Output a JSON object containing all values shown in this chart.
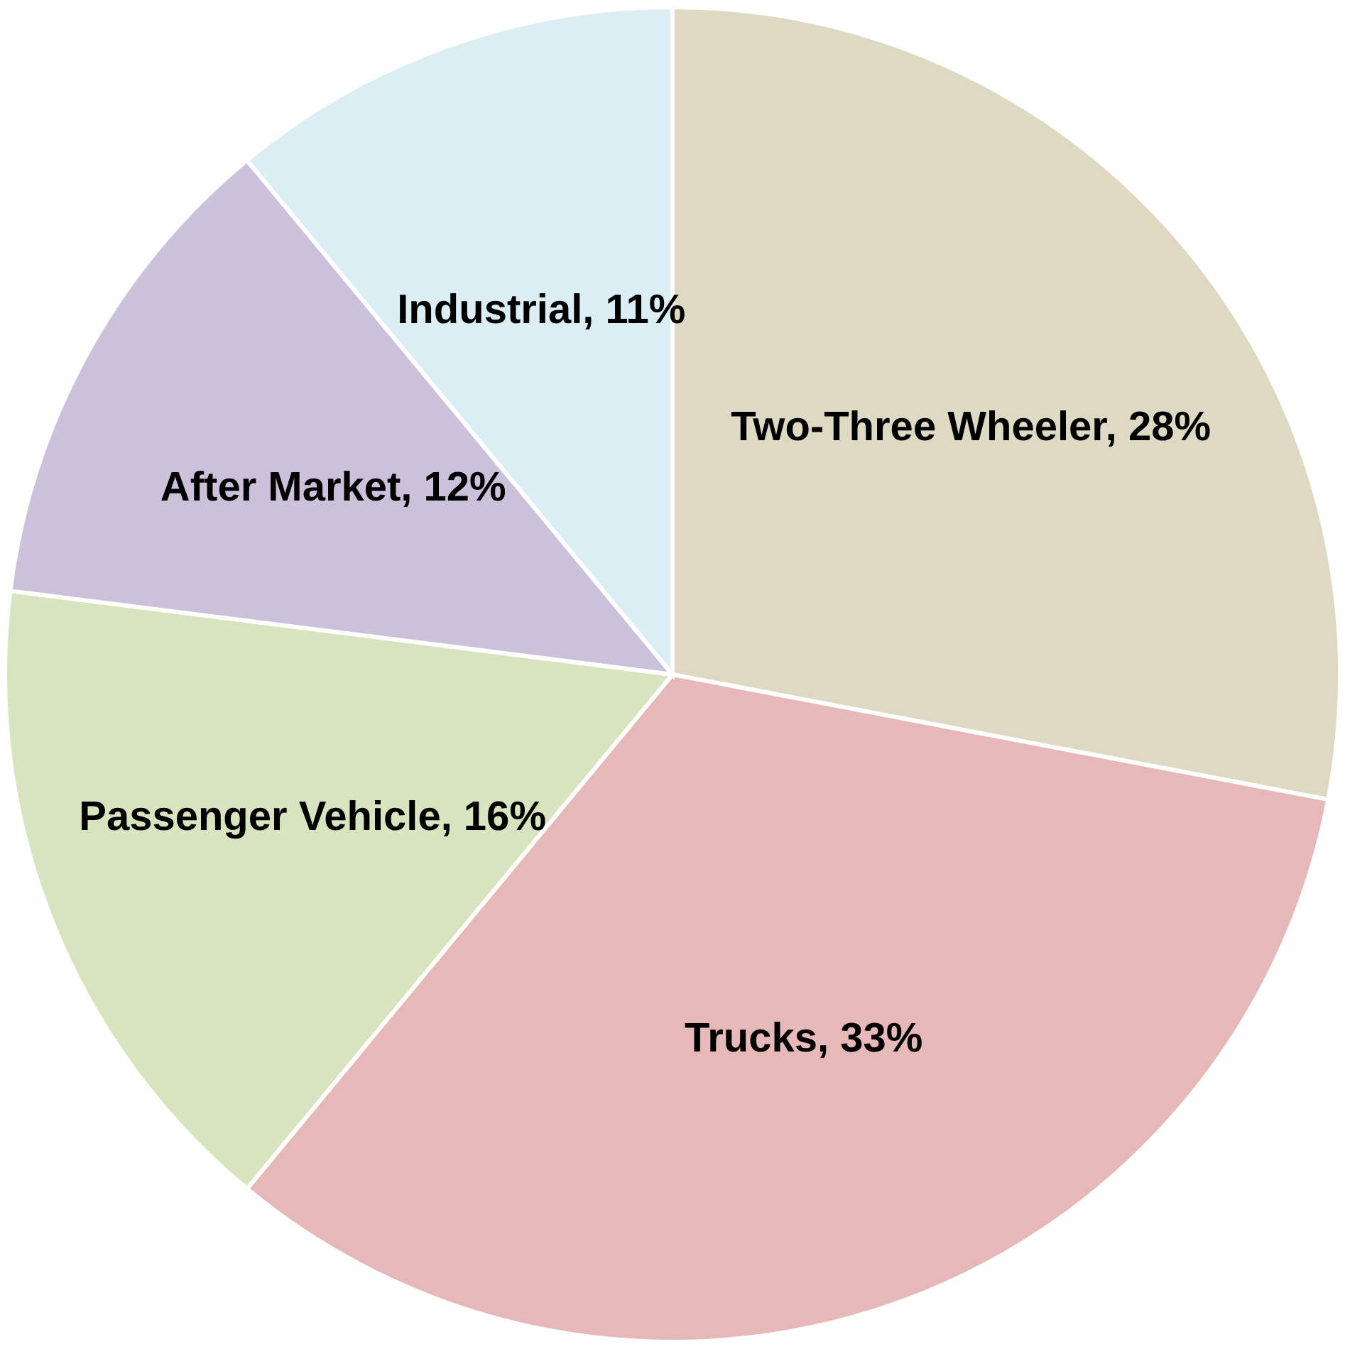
{
  "chart_data": {
    "type": "pie",
    "categories": [
      "Two-Three Wheeler",
      "Trucks",
      "Passenger Vehicle",
      "After Market",
      "Industrial"
    ],
    "values": [
      28,
      33,
      16,
      12,
      11
    ],
    "value_labels": [
      "28%",
      "33%",
      "16%",
      "12%",
      "11%"
    ],
    "colors": [
      "#ddd9c3",
      "#e6b9b8",
      "#d7e4bd",
      "#ccc1da",
      "#dbeef4"
    ]
  }
}
